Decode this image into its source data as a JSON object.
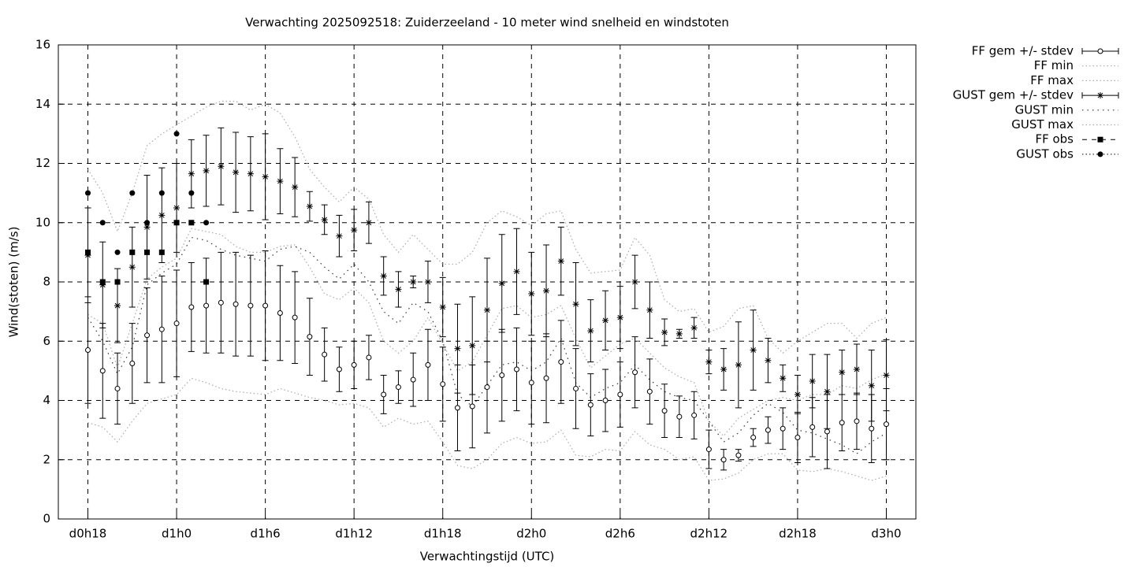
{
  "chart_data": {
    "type": "errorbar",
    "title": "Verwachting 2025092518: Zuiderzeeland - 10 meter wind snelheid en windstoten",
    "x_label": "Verwachtingstijd (UTC)",
    "y_label": "Wind(stoten) (m/s)",
    "x": [
      18,
      19,
      20,
      21,
      22,
      23,
      24,
      25,
      26,
      27,
      28,
      29,
      30,
      31,
      32,
      33,
      34,
      35,
      36,
      37,
      38,
      39,
      40,
      41,
      42,
      43,
      44,
      45,
      46,
      47,
      48,
      49,
      50,
      51,
      52,
      53,
      54,
      55,
      56,
      57,
      58,
      59,
      60,
      61,
      62,
      63,
      64,
      65,
      66,
      67,
      68,
      69,
      70,
      71,
      72
    ],
    "xlim": [
      16,
      74
    ],
    "xticks": [
      {
        "value": 18,
        "label": "d0h18"
      },
      {
        "value": 24,
        "label": "d1h0"
      },
      {
        "value": 30,
        "label": "d1h6"
      },
      {
        "value": 36,
        "label": "d1h12"
      },
      {
        "value": 42,
        "label": "d1h18"
      },
      {
        "value": 48,
        "label": "d2h0"
      },
      {
        "value": 54,
        "label": "d2h6"
      },
      {
        "value": 60,
        "label": "d2h12"
      },
      {
        "value": 66,
        "label": "d2h18"
      },
      {
        "value": 72,
        "label": "d3h0"
      }
    ],
    "ylim": [
      0,
      16
    ],
    "yticks": [
      0,
      2,
      4,
      6,
      8,
      10,
      12,
      14,
      16
    ],
    "grid": true,
    "legend": "outside-right",
    "series": [
      {
        "name": "FF gem +/- stdev",
        "style": "errorbar-open",
        "color": "#000000",
        "values": [
          5.7,
          5.0,
          4.4,
          5.25,
          6.2,
          6.4,
          6.6,
          7.15,
          7.2,
          7.3,
          7.25,
          7.2,
          7.2,
          6.95,
          6.8,
          6.15,
          5.55,
          5.05,
          5.2,
          5.45,
          4.2,
          4.45,
          4.7,
          5.2,
          4.55,
          3.75,
          3.8,
          4.45,
          4.85,
          5.05,
          4.6,
          4.75,
          5.3,
          4.4,
          3.85,
          4.0,
          4.2,
          4.95,
          4.3,
          3.65,
          3.45,
          3.5,
          2.35,
          2.0,
          2.15,
          2.75,
          3.0,
          3.05,
          2.75,
          3.1,
          2.95,
          3.25,
          3.3,
          3.05,
          3.2
        ],
        "errors": [
          1.8,
          1.6,
          1.2,
          1.35,
          1.6,
          1.8,
          1.8,
          1.5,
          1.6,
          1.7,
          1.75,
          1.7,
          1.85,
          1.6,
          1.55,
          1.3,
          0.9,
          0.75,
          0.8,
          0.75,
          0.65,
          0.55,
          0.9,
          1.2,
          1.25,
          1.45,
          1.4,
          1.55,
          1.55,
          1.4,
          1.4,
          1.5,
          1.4,
          1.35,
          1.05,
          1.05,
          1.1,
          1.2,
          1.1,
          0.9,
          0.7,
          0.8,
          0.65,
          0.35,
          0.2,
          0.3,
          0.45,
          0.7,
          0.85,
          1.0,
          1.25,
          0.95,
          0.95,
          1.15,
          1.2
        ]
      },
      {
        "name": "FF min",
        "style": "dotted",
        "color": "#aaaaaa",
        "values": [
          3.25,
          3.1,
          2.6,
          3.3,
          3.9,
          4.05,
          4.2,
          4.75,
          4.6,
          4.4,
          4.3,
          4.25,
          4.2,
          4.4,
          4.25,
          4.1,
          4.0,
          3.85,
          3.9,
          3.75,
          3.1,
          3.4,
          3.2,
          3.3,
          2.6,
          1.8,
          1.7,
          2.0,
          2.55,
          2.75,
          2.55,
          2.6,
          3.0,
          2.15,
          2.1,
          2.35,
          2.3,
          2.95,
          2.5,
          2.35,
          2.0,
          2.1,
          1.3,
          1.35,
          1.55,
          2.0,
          2.2,
          2.2,
          1.65,
          1.6,
          1.7,
          1.6,
          1.45,
          1.3,
          1.45
        ]
      },
      {
        "name": "FF max",
        "style": "dotted",
        "color": "#aaaaaa",
        "values": [
          6.9,
          6.6,
          5.1,
          6.6,
          8.1,
          8.5,
          8.8,
          9.8,
          9.7,
          9.6,
          9.2,
          9.0,
          9.0,
          9.2,
          9.25,
          8.5,
          7.6,
          7.4,
          7.8,
          7.3,
          6.0,
          5.6,
          6.0,
          6.8,
          5.9,
          5.0,
          5.3,
          6.2,
          7.1,
          7.2,
          6.8,
          6.9,
          7.2,
          6.1,
          5.1,
          5.5,
          5.9,
          6.1,
          5.6,
          5.1,
          4.8,
          4.6,
          3.3,
          2.8,
          3.4,
          3.7,
          4.0,
          4.1,
          4.0,
          4.2,
          4.2,
          4.5,
          4.4,
          4.7,
          4.9
        ]
      },
      {
        "name": "GUST gem +/- stdev",
        "style": "errorbar-star",
        "color": "#000000",
        "values": [
          8.9,
          7.9,
          7.2,
          8.5,
          9.85,
          10.25,
          10.5,
          11.65,
          11.75,
          11.9,
          11.7,
          11.65,
          11.55,
          11.4,
          11.2,
          10.55,
          10.1,
          9.55,
          9.75,
          10.0,
          8.2,
          7.75,
          8.0,
          8.0,
          7.15,
          5.75,
          5.85,
          7.05,
          7.95,
          8.35,
          7.6,
          7.7,
          8.7,
          7.25,
          6.35,
          6.7,
          6.8,
          8.0,
          7.05,
          6.3,
          6.25,
          6.45,
          5.3,
          5.05,
          5.2,
          5.7,
          5.35,
          4.75,
          4.2,
          4.65,
          4.3,
          4.95,
          5.05,
          4.5,
          4.85
        ],
        "errors": [
          1.6,
          1.45,
          1.25,
          1.35,
          1.75,
          1.6,
          1.5,
          1.15,
          1.2,
          1.3,
          1.35,
          1.25,
          1.45,
          1.1,
          1.0,
          0.5,
          0.5,
          0.7,
          0.7,
          0.7,
          0.65,
          0.6,
          0.2,
          0.7,
          1.0,
          1.5,
          1.65,
          1.75,
          1.65,
          1.45,
          1.4,
          1.55,
          1.15,
          1.4,
          1.05,
          1.0,
          1.05,
          0.9,
          0.95,
          0.45,
          0.15,
          0.35,
          0.4,
          0.7,
          1.45,
          1.35,
          0.75,
          0.45,
          0.65,
          0.9,
          1.25,
          0.75,
          0.85,
          1.2,
          1.2
        ]
      },
      {
        "name": "GUST min",
        "style": "dotted-coarse",
        "color": "#333333",
        "values": [
          6.8,
          6.0,
          4.9,
          5.8,
          7.9,
          8.3,
          8.6,
          9.5,
          9.4,
          9.1,
          8.9,
          8.8,
          8.7,
          9.1,
          9.2,
          9.0,
          8.5,
          8.1,
          8.6,
          8.0,
          7.0,
          6.6,
          7.3,
          7.0,
          6.0,
          4.2,
          3.8,
          4.5,
          5.2,
          5.3,
          5.0,
          5.3,
          6.1,
          4.6,
          4.1,
          4.4,
          4.6,
          5.2,
          4.7,
          4.3,
          4.1,
          4.0,
          3.3,
          2.6,
          2.9,
          3.5,
          3.9,
          3.6,
          3.0,
          2.9,
          2.7,
          2.5,
          2.2,
          2.6,
          2.9
        ]
      },
      {
        "name": "GUST max",
        "style": "dotted",
        "color": "#aaaaaa",
        "values": [
          11.8,
          11.0,
          9.7,
          11.0,
          12.6,
          13.0,
          13.3,
          13.6,
          13.9,
          14.1,
          14.1,
          13.8,
          14.0,
          13.7,
          12.9,
          11.8,
          11.2,
          10.7,
          11.2,
          10.8,
          9.6,
          9.0,
          9.6,
          9.1,
          8.6,
          8.6,
          9.0,
          10.0,
          10.4,
          10.2,
          9.9,
          10.3,
          10.4,
          9.1,
          8.3,
          8.35,
          8.4,
          9.5,
          8.9,
          7.4,
          7.0,
          7.1,
          6.3,
          6.5,
          7.1,
          7.2,
          6.1,
          5.6,
          6.0,
          6.3,
          6.6,
          6.6,
          6.1,
          6.6,
          6.8
        ]
      },
      {
        "name": "FF obs",
        "style": "square",
        "color": "#000000",
        "values": [
          9,
          8,
          8,
          9,
          9,
          9,
          10,
          10,
          8,
          null,
          null,
          null,
          null,
          null,
          null,
          null,
          null,
          null,
          null,
          null,
          null,
          null,
          null,
          null,
          null,
          null,
          null,
          null,
          null,
          null,
          null,
          null,
          null,
          null,
          null,
          null,
          null,
          null,
          null,
          null,
          null,
          null,
          null,
          null,
          null,
          null,
          null,
          null,
          null,
          null,
          null,
          null,
          null,
          null,
          null
        ]
      },
      {
        "name": "GUST obs",
        "style": "dot",
        "color": "#000000",
        "values": [
          11,
          10,
          9,
          11,
          10,
          11,
          13,
          11,
          10,
          null,
          null,
          null,
          null,
          null,
          null,
          null,
          null,
          null,
          null,
          null,
          null,
          null,
          null,
          null,
          null,
          null,
          null,
          null,
          null,
          null,
          null,
          null,
          null,
          null,
          null,
          null,
          null,
          null,
          null,
          null,
          null,
          null,
          null,
          null,
          null,
          null,
          null,
          null,
          null,
          null,
          null,
          null,
          null,
          null,
          null
        ]
      }
    ]
  }
}
